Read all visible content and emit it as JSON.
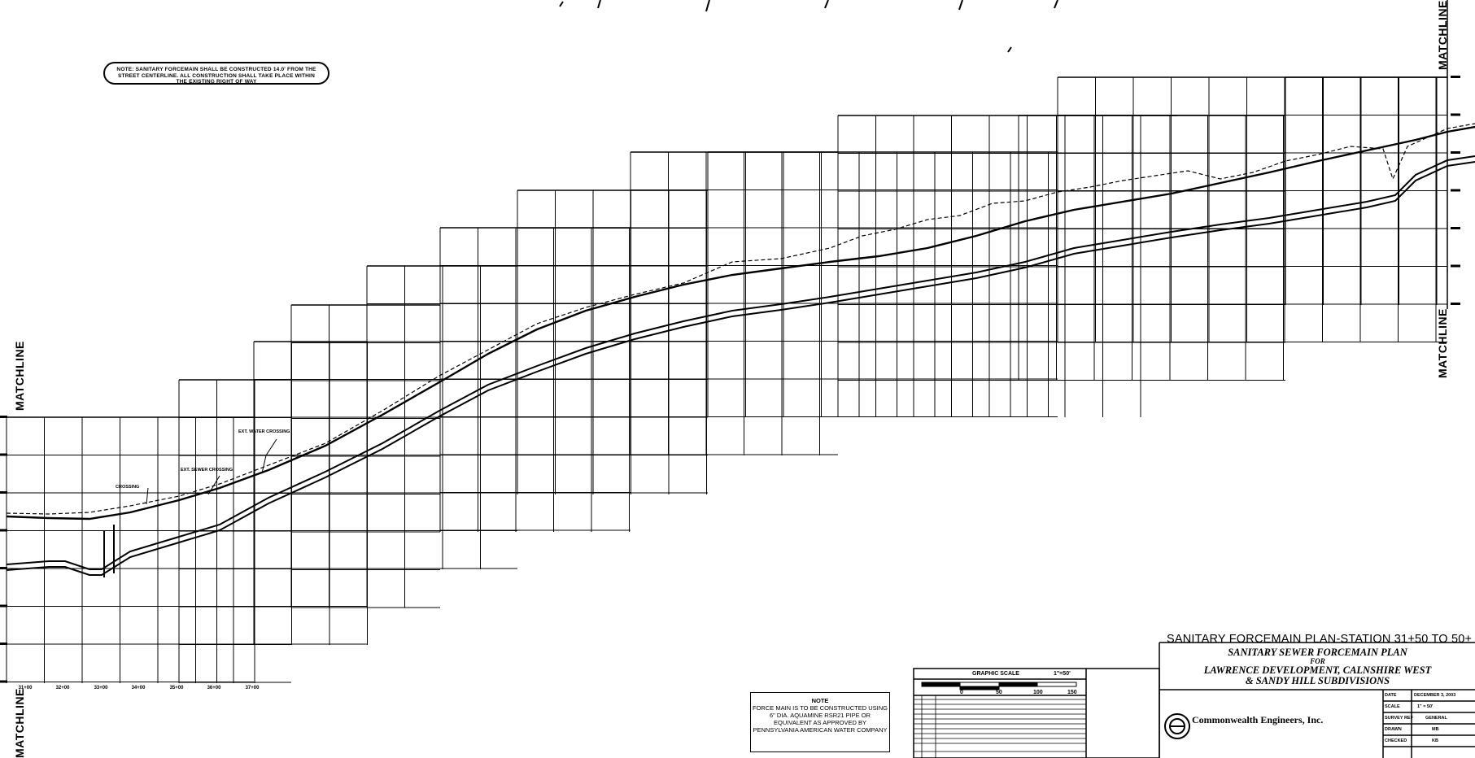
{
  "top_note": "NOTE: SANITARY FORCEMAIN SHALL BE CONSTRUCTED 14.0' FROM THE STREET CENTERLINE. ALL CONSTRUCTION SHALL TAKE PLACE WITHIN THE EXISTING RIGHT OF WAY",
  "matchline_label": "MATCHLINE",
  "force_main_note": {
    "title": "NOTE",
    "body": "FORCE MAIN IS TO BE CONSTRUCTED USING 6\" DIA. AQUAMINE RSR21 PIPE OR EQUIVALENT AS APPROVED BY PENNSYLVANIA AMERICAN WATER COMPANY"
  },
  "graphic_scale": {
    "title": "GRAPHIC SCALE",
    "ratio": "1\"=50'",
    "ticks": [
      "0",
      "50",
      "100",
      "150"
    ]
  },
  "title_block": {
    "header": "SANITARY FORCEMAIN PLAN-STATION 31+50 TO 50+",
    "title_line1": "SANITARY SEWER FORCEMAIN PLAN",
    "title_for": "FOR",
    "title_line2": "LAWRENCE DEVELOPMENT, CALNSHIRE WEST",
    "title_line3": "& SANDY HILL SUBDIVISIONS",
    "company": "Commonwealth Engineers, Inc.",
    "fields": [
      {
        "label": "DATE",
        "value": "DECEMBER 3, 2003"
      },
      {
        "label": "SCALE",
        "value": "1\" = 50'"
      },
      {
        "label": "SURVEY REF",
        "value": "GENERAL"
      },
      {
        "label": "DRAWN",
        "value": "MB"
      },
      {
        "label": "CHECKED",
        "value": "KB"
      }
    ]
  },
  "stations_bottom": [
    "31+00",
    "32+00",
    "33+00",
    "34+00",
    "35+00",
    "36+00",
    "37+00"
  ],
  "callouts": {
    "crossing_a": "EXT. WATER CROSSING",
    "crossing_b": "EXT. SEWER CROSSING",
    "crossing_c": "CROSSING"
  },
  "line_colors": {
    "ink": "#000000",
    "paper": "#ffffff"
  }
}
